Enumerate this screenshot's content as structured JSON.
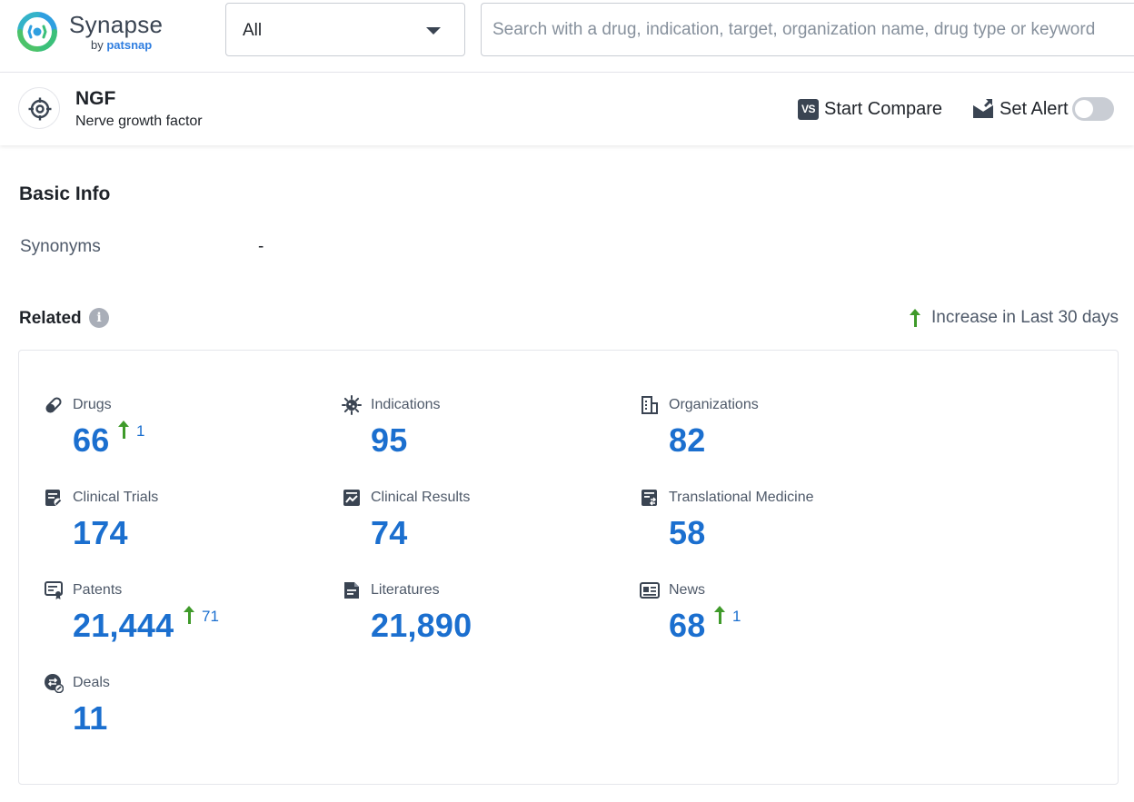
{
  "header": {
    "logo_name": "Synapse",
    "logo_by": "by",
    "logo_brand": "patsnap",
    "scope_value": "All",
    "search_placeholder": "Search with a drug, indication, target, organization name, drug type or keyword"
  },
  "target": {
    "symbol": "NGF",
    "full_name": "Nerve growth factor",
    "compare_badge": "VS",
    "compare_label": "Start Compare",
    "alert_label": "Set Alert",
    "alert_enabled": false
  },
  "basic_info": {
    "title": "Basic Info",
    "synonyms_label": "Synonyms",
    "synonyms_value": "-"
  },
  "related": {
    "title": "Related",
    "info_glyph": "i",
    "legend": "Increase in Last 30 days",
    "items": [
      {
        "icon": "pill-icon",
        "label": "Drugs",
        "value": "66",
        "increase": "1"
      },
      {
        "icon": "virus-icon",
        "label": "Indications",
        "value": "95",
        "increase": null
      },
      {
        "icon": "building-icon",
        "label": "Organizations",
        "value": "82",
        "increase": null
      },
      {
        "icon": "clinical-trial-icon",
        "label": "Clinical Trials",
        "value": "174",
        "increase": null
      },
      {
        "icon": "clinical-result-icon",
        "label": "Clinical Results",
        "value": "74",
        "increase": null
      },
      {
        "icon": "translational-medicine-icon",
        "label": "Translational Medicine",
        "value": "58",
        "increase": null
      },
      {
        "icon": "patent-icon",
        "label": "Patents",
        "value": "21,444",
        "increase": "71"
      },
      {
        "icon": "literature-icon",
        "label": "Literatures",
        "value": "21,890",
        "increase": null
      },
      {
        "icon": "news-icon",
        "label": "News",
        "value": "68",
        "increase": "1"
      },
      {
        "icon": "deal-icon",
        "label": "Deals",
        "value": "11",
        "increase": null
      }
    ]
  },
  "colors": {
    "accent_blue": "#1b6fcf",
    "increase_green": "#3f9a2a",
    "icon_dark": "#3a4452"
  }
}
